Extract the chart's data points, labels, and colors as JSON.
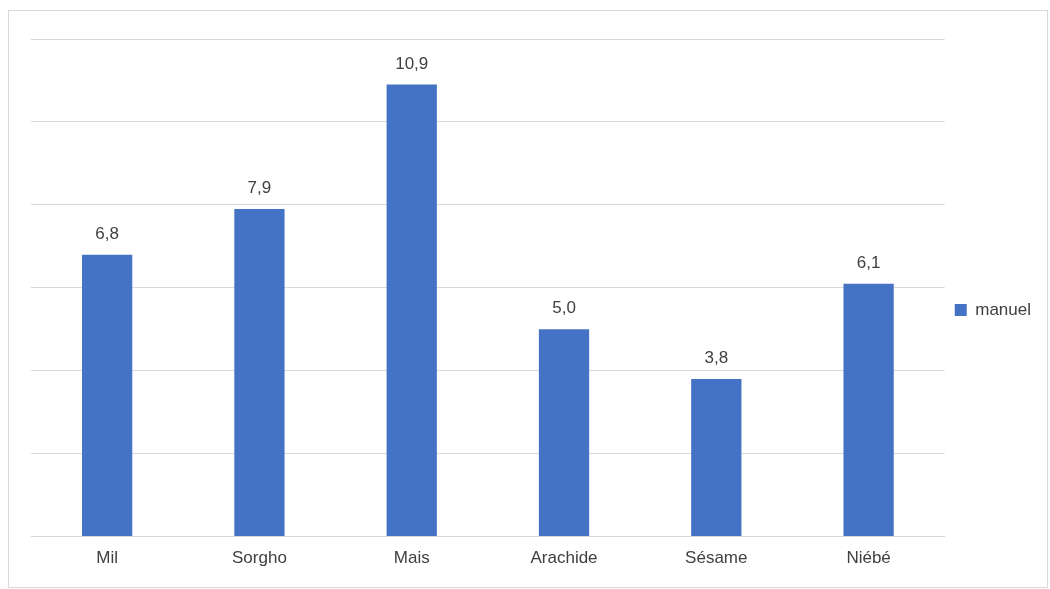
{
  "chart_data": {
    "type": "bar",
    "categories": [
      "Mil",
      "Sorgho",
      "Mais",
      "Arachide",
      "Sésame",
      "Niébé"
    ],
    "series": [
      {
        "name": "manuel",
        "color": "#4472c4",
        "values": [
          6.8,
          7.9,
          10.9,
          5.0,
          3.8,
          6.1
        ],
        "value_labels": [
          "6,8",
          "7,9",
          "10,9",
          "5,0",
          "3,8",
          "6,1"
        ]
      }
    ],
    "ylim": [
      0,
      12
    ],
    "yticks": [
      {
        "value": 0,
        "label": null
      },
      {
        "value": 2,
        "label": null
      },
      {
        "value": 4,
        "label": null
      },
      {
        "value": 6,
        "label": null
      },
      {
        "value": 8,
        "label": null
      },
      {
        "value": 10,
        "label": null
      },
      {
        "value": 12,
        "label": null
      }
    ],
    "grid": "y",
    "legend": "right",
    "tick_labels": "x"
  }
}
